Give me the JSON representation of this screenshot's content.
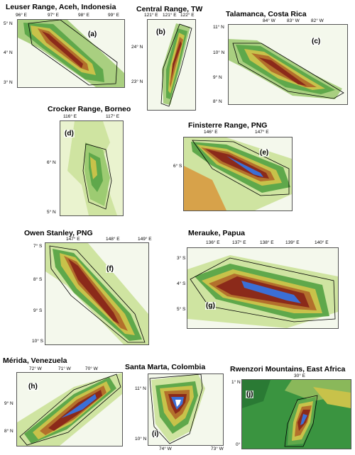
{
  "panels": [
    {
      "id": "a",
      "letter": "(a)",
      "title": "Leuser Range, Aceh, Indonesia",
      "x_ticks": [
        "96° E",
        "97° E",
        "98° E",
        "99° E"
      ],
      "y_ticks": [
        "5° N",
        "4° N",
        "3° N"
      ]
    },
    {
      "id": "b",
      "letter": "(b)",
      "title": "Central Range, TW",
      "x_ticks": [
        "121° E",
        "121° E",
        "122° E"
      ],
      "y_ticks": [
        "24° N",
        "23° N"
      ]
    },
    {
      "id": "c",
      "letter": "(c)",
      "title": "Talamanca, Costa Rica",
      "x_ticks": [
        "84° W",
        "83° W",
        "82° W"
      ],
      "y_ticks": [
        "11° N",
        "10° N",
        "9° N",
        "8° N"
      ]
    },
    {
      "id": "d",
      "letter": "(d)",
      "title": "Crocker Range, Borneo",
      "x_ticks": [
        "116° E",
        "117° E"
      ],
      "y_ticks": [
        "6° N",
        "5° N"
      ]
    },
    {
      "id": "e",
      "letter": "(e)",
      "title": "Finisterre Range, PNG",
      "x_ticks": [
        "146° E",
        "147° E"
      ],
      "y_ticks": [
        "6° S"
      ]
    },
    {
      "id": "f",
      "letter": "(f)",
      "title": "Owen Stanley, PNG",
      "x_ticks": [
        "147° E",
        "148° E",
        "149° E"
      ],
      "y_ticks": [
        "7° S",
        "8° S",
        "9° S",
        "10° S"
      ]
    },
    {
      "id": "g",
      "letter": "(g)",
      "title": "Merauke, Papua",
      "x_ticks": [
        "136° E",
        "137° E",
        "138° E",
        "139° E",
        "140° E"
      ],
      "y_ticks": [
        "3° S",
        "4° S",
        "5° S"
      ]
    },
    {
      "id": "h",
      "letter": "(h)",
      "title": "Mérida, Venezuela",
      "x_ticks": [
        "72° W",
        "71° W",
        "70° W"
      ],
      "y_ticks": [
        "9° N",
        "8° N"
      ]
    },
    {
      "id": "i",
      "letter": "(i)",
      "title": "Santa Marta, Colombia",
      "x_ticks": [
        "74° W",
        "73° W"
      ],
      "y_ticks": [
        "11° N",
        "10° N"
      ]
    },
    {
      "id": "j",
      "letter": "(j)",
      "title": "Rwenzori Mountains, East Africa",
      "x_ticks": [
        "30° E"
      ],
      "y_ticks": [
        "1° N",
        "0°"
      ]
    }
  ]
}
